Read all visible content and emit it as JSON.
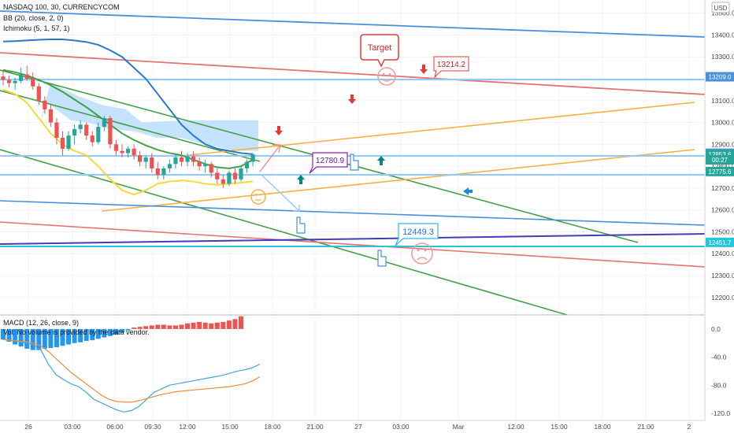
{
  "header": {
    "symbol_title": "NASDAQ 100, 30, CURRENCYCOM",
    "bb_label": "BB (20, close, 2, 0)",
    "ichimoku_label": "Ichimoku (5, 1, 57, 1)",
    "currency_badge": "USD"
  },
  "macd_panel": {
    "title": "MACD (12, 26, close, 9)",
    "volume_note": "Vol: No volume is provided by the data vendor."
  },
  "price_axis": {
    "ticks": [
      "13500.0",
      "13400.0",
      "13300.0",
      "13200.0",
      "13100.0",
      "13000.0",
      "12900.0",
      "12800.0",
      "12700.0",
      "12600.0",
      "12500.0",
      "12400.0",
      "12300.0",
      "12200.0"
    ],
    "tick_values": [
      13500,
      13400,
      13300,
      13200,
      13100,
      13000,
      12900,
      12800,
      12700,
      12600,
      12500,
      12400,
      12300,
      12200
    ],
    "badges": [
      {
        "text": "13209.0",
        "value": 13209.0,
        "color": "#4a90d9"
      },
      {
        "text": "12859.2",
        "value": 12859.2,
        "color": "#4a90d9"
      },
      {
        "text": "12853.6",
        "value": 12853.6,
        "color": "#26a69a"
      },
      {
        "text": "00:27",
        "value": 12829,
        "color": "#26a69a"
      },
      {
        "text": "12775.6",
        "value": 12775.6,
        "color": "#26a69a"
      },
      {
        "text": "12451.7",
        "value": 12451.7,
        "color": "#26c6da"
      }
    ]
  },
  "macd_axis": {
    "ticks": [
      "0.0",
      "-40.0",
      "-80.0",
      "-120.0"
    ],
    "tick_values": [
      0,
      -40,
      -80,
      -120
    ]
  },
  "time_axis": {
    "labels": [
      "26",
      "03:00",
      "06:00",
      "09:30",
      "12:00",
      "15:00",
      "18:00",
      "21:00",
      "27",
      "03:00",
      "Mar",
      "12:00",
      "15:00",
      "18:00",
      "21:00",
      "2"
    ]
  },
  "annotations": {
    "target_bubble": "Target",
    "label_13214": "13214.2",
    "label_12780": "12780.9",
    "label_12449": "12449.3"
  },
  "colors": {
    "up_candle": "#26a69a",
    "down_candle": "#ef5350",
    "bb_band_fill": "#bbdefb",
    "trend_green": "#43a047",
    "trend_red": "#e57373",
    "trend_blue": "#4a90d9",
    "trend_orange": "#f5b041",
    "trend_purple": "#3f3fb5"
  },
  "chart_data": [
    {
      "type": "candlestick",
      "title": "NASDAQ 100, 30, CURRENCYCOM",
      "ylim": [
        12120,
        13560
      ],
      "candles_ohlc": [
        [
          13210,
          13240,
          13170,
          13195
        ],
        [
          13195,
          13215,
          13160,
          13180
        ],
        [
          13180,
          13205,
          13150,
          13190
        ],
        [
          13190,
          13250,
          13180,
          13220
        ],
        [
          13220,
          13260,
          13190,
          13200
        ],
        [
          13200,
          13230,
          13150,
          13165
        ],
        [
          13165,
          13180,
          13080,
          13100
        ],
        [
          13100,
          13120,
          13040,
          13060
        ],
        [
          13060,
          13080,
          12980,
          13000
        ],
        [
          13000,
          13020,
          12900,
          12930
        ],
        [
          12930,
          12960,
          12850,
          12880
        ],
        [
          12880,
          12960,
          12870,
          12940
        ],
        [
          12940,
          12990,
          12900,
          12970
        ],
        [
          12970,
          13010,
          12950,
          12990
        ],
        [
          12990,
          13000,
          12920,
          12940
        ],
        [
          12940,
          12960,
          12890,
          12910
        ],
        [
          12910,
          13000,
          12900,
          12980
        ],
        [
          12980,
          13030,
          12960,
          13020
        ],
        [
          13020,
          13030,
          12880,
          12900
        ],
        [
          12900,
          12920,
          12850,
          12870
        ],
        [
          12870,
          12900,
          12840,
          12860
        ],
        [
          12860,
          12890,
          12840,
          12880
        ],
        [
          12880,
          12900,
          12830,
          12850
        ],
        [
          12850,
          12870,
          12800,
          12820
        ],
        [
          12820,
          12850,
          12790,
          12840
        ],
        [
          12840,
          12860,
          12770,
          12790
        ],
        [
          12790,
          12820,
          12740,
          12760
        ],
        [
          12760,
          12800,
          12740,
          12790
        ],
        [
          12790,
          12830,
          12770,
          12810
        ],
        [
          12810,
          12860,
          12790,
          12840
        ],
        [
          12840,
          12870,
          12800,
          12820
        ],
        [
          12820,
          12860,
          12800,
          12845
        ],
        [
          12845,
          12870,
          12800,
          12820
        ],
        [
          12820,
          12840,
          12780,
          12800
        ],
        [
          12800,
          12830,
          12770,
          12810
        ],
        [
          12810,
          12820,
          12750,
          12770
        ],
        [
          12770,
          12790,
          12720,
          12740
        ],
        [
          12740,
          12760,
          12700,
          12720
        ],
        [
          12720,
          12780,
          12710,
          12770
        ],
        [
          12770,
          12790,
          12720,
          12740
        ],
        [
          12740,
          12800,
          12730,
          12790
        ],
        [
          12790,
          12830,
          12770,
          12820
        ],
        [
          12820,
          12860,
          12800,
          12853.6
        ]
      ],
      "lines": [
        {
          "name": "BB upper",
          "color": "#2979c9",
          "points": [
            [
              13370,
              0
            ],
            [
              13372,
              2
            ],
            [
              13375,
              4
            ],
            [
              13378,
              6
            ],
            [
              13380,
              8
            ],
            [
              13380,
              10
            ],
            [
              13375,
              12
            ],
            [
              13368,
              14
            ],
            [
              13355,
              16
            ],
            [
              13330,
              18
            ],
            [
              13300,
              20
            ],
            [
              13250,
              22
            ],
            [
              13200,
              24
            ],
            [
              13130,
              26
            ],
            [
              13060,
              28
            ],
            [
              12990,
              30
            ],
            [
              12940,
              32
            ],
            [
              12900,
              34
            ],
            [
              12880,
              36
            ],
            [
              12870,
              38
            ],
            [
              12860,
              40
            ],
            [
              12855,
              42
            ]
          ]
        },
        {
          "name": "BB basis",
          "color": "#43a047",
          "points": [
            [
              13240,
              0
            ],
            [
              13230,
              2
            ],
            [
              13215,
              4
            ],
            [
              13195,
              6
            ],
            [
              13170,
              8
            ],
            [
              13140,
              10
            ],
            [
              13105,
              12
            ],
            [
              13070,
              14
            ],
            [
              13030,
              16
            ],
            [
              12990,
              18
            ],
            [
              12950,
              20
            ],
            [
              12920,
              22
            ],
            [
              12895,
              24
            ],
            [
              12875,
              26
            ],
            [
              12860,
              28
            ],
            [
              12850,
              30
            ],
            [
              12830,
              32
            ],
            [
              12810,
              34
            ],
            [
              12795,
              36
            ],
            [
              12790,
              38
            ],
            [
              12800,
              40
            ],
            [
              12830,
              42
            ]
          ]
        },
        {
          "name": "BB lower",
          "color": "#fdd835",
          "points": [
            [
              13150,
              0
            ],
            [
              13130,
              2
            ],
            [
              13090,
              4
            ],
            [
              13020,
              6
            ],
            [
              12950,
              8
            ],
            [
              12900,
              10
            ],
            [
              12870,
              12
            ],
            [
              12850,
              14
            ],
            [
              12800,
              16
            ],
            [
              12740,
              18
            ],
            [
              12690,
              20
            ],
            [
              12670,
              22
            ],
            [
              12690,
              24
            ],
            [
              12720,
              26
            ],
            [
              12730,
              28
            ],
            [
              12735,
              30
            ],
            [
              12730,
              32
            ],
            [
              12720,
              34
            ],
            [
              12715,
              36
            ],
            [
              12720,
              38
            ],
            [
              12725,
              40
            ],
            [
              12730,
              42
            ]
          ]
        }
      ]
    },
    {
      "type": "bar",
      "title": "MACD (12, 26, close, 9)",
      "ylim": [
        -130,
        20
      ],
      "histogram": [
        -15,
        -18,
        -22,
        -25,
        -28,
        -30,
        -30,
        -28,
        -27,
        -26,
        -24,
        -22,
        -20,
        -19,
        -17,
        -16,
        -14,
        -12,
        -10,
        -8,
        -5,
        -2,
        2,
        3,
        4,
        5,
        6,
        6,
        5,
        5,
        6,
        8,
        9,
        10,
        9,
        8,
        9,
        10,
        12,
        14,
        18
      ],
      "series": [
        {
          "name": "MACD",
          "color": "#4aa3df",
          "values": [
            -15,
            -16,
            -18,
            -20,
            -22,
            -30,
            -50,
            -65,
            -72,
            -78,
            -82,
            -90,
            -100,
            -105,
            -110,
            -115,
            -118,
            -116,
            -110,
            -100,
            -90,
            -85,
            -80,
            -78,
            -76,
            -74,
            -72,
            -70,
            -68,
            -66,
            -63,
            -60,
            -58,
            -55,
            -50
          ]
        },
        {
          "name": "Signal",
          "color": "#ef8c3b",
          "values": [
            -15,
            -16,
            -17,
            -18,
            -20,
            -24,
            -32,
            -42,
            -52,
            -62,
            -70,
            -78,
            -86,
            -94,
            -100,
            -103,
            -104,
            -104,
            -102,
            -99,
            -96,
            -93,
            -91,
            -89,
            -88,
            -87,
            -86,
            -85,
            -84,
            -83,
            -82,
            -80,
            -78,
            -74,
            -68
          ]
        }
      ]
    }
  ]
}
